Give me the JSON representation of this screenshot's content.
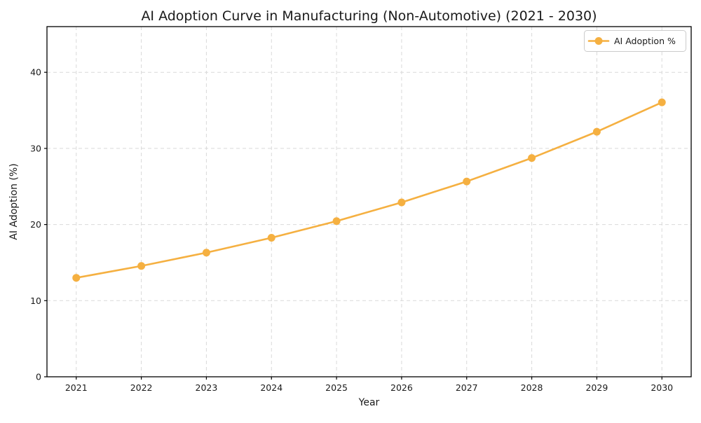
{
  "chart_data": {
    "type": "line",
    "title": "AI Adoption Curve in Manufacturing (Non-Automotive) (2021 - 2030)",
    "xlabel": "Year",
    "ylabel": "AI Adoption (%)",
    "x": [
      2021,
      2022,
      2023,
      2024,
      2025,
      2026,
      2027,
      2028,
      2029,
      2030
    ],
    "series": [
      {
        "name": "AI Adoption %",
        "values": [
          13.0,
          14.56,
          16.31,
          18.26,
          20.45,
          22.91,
          25.66,
          28.74,
          32.19,
          36.05
        ],
        "color": "#f5b041",
        "marker": "circle",
        "line_width": 2.6,
        "marker_radius": 5.5
      }
    ],
    "xticks": [
      2021,
      2022,
      2023,
      2024,
      2025,
      2026,
      2027,
      2028,
      2029,
      2030
    ],
    "yticks": [
      0,
      10,
      20,
      30,
      40
    ],
    "ylim": [
      0,
      46
    ],
    "grid": true,
    "grid_style": "dashed",
    "grid_color": "#d9d9d9",
    "spine_color": "#000000",
    "text_color": "#1a1a1a",
    "background": "#ffffff",
    "legend_position": "upper right"
  }
}
